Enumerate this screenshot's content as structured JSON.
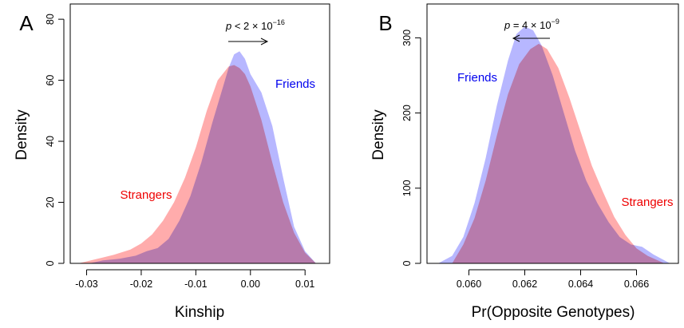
{
  "colors": {
    "friends_fill": "#9999ff",
    "strangers_fill": "#ff8080",
    "friends_label": "#0000ee",
    "strangers_label": "#ee0000"
  },
  "chart_data": [
    {
      "type": "area",
      "panel": "A",
      "xlabel": "Kinship",
      "ylabel": "Density",
      "xlim": [
        -0.033,
        0.0145
      ],
      "ylim": [
        0,
        85
      ],
      "xticks": [
        "-0.03",
        "-0.02",
        "-0.01",
        "0.00",
        "0.01"
      ],
      "yticks": [
        "0",
        "20",
        "40",
        "60",
        "80"
      ],
      "annotation": {
        "p": "p",
        "rest": " < 2 × 10",
        "exp": "−16",
        "arrow_direction": "right"
      },
      "series": [
        {
          "name": "Strangers",
          "x": [
            -0.0315,
            -0.028,
            -0.025,
            -0.022,
            -0.02,
            -0.018,
            -0.016,
            -0.014,
            -0.012,
            -0.01,
            -0.008,
            -0.006,
            -0.004,
            -0.003,
            -0.002,
            -0.001,
            0.0,
            0.002,
            0.004,
            0.006,
            0.008,
            0.01,
            0.012
          ],
          "y": [
            0,
            1.5,
            2.8,
            4.5,
            6.5,
            9.5,
            14,
            20,
            28,
            38,
            50,
            60,
            64.5,
            65,
            64,
            62,
            58,
            47,
            33,
            20,
            10,
            3.5,
            0
          ]
        },
        {
          "name": "Friends",
          "x": [
            -0.0295,
            -0.027,
            -0.024,
            -0.021,
            -0.019,
            -0.017,
            -0.015,
            -0.013,
            -0.011,
            -0.009,
            -0.007,
            -0.005,
            -0.004,
            -0.003,
            -0.002,
            -0.001,
            0.0,
            0.002,
            0.004,
            0.006,
            0.008,
            0.01,
            0.012
          ],
          "y": [
            0,
            1.0,
            1.5,
            2.5,
            4.0,
            5.0,
            8,
            14,
            22,
            33,
            46,
            58,
            64,
            68.5,
            69.5,
            67,
            62,
            56,
            45,
            28,
            12,
            4,
            0
          ]
        }
      ]
    },
    {
      "type": "area",
      "panel": "B",
      "xlabel": "Pr(Opposite Genotypes)",
      "ylabel": "Density",
      "xlim": [
        0.0585,
        0.0675
      ],
      "ylim": [
        0,
        345
      ],
      "xticks": [
        "0.060",
        "0.062",
        "0.064",
        "0.066"
      ],
      "yticks": [
        "0",
        "100",
        "200",
        "300"
      ],
      "annotation": {
        "p": "p",
        "rest": " = 4 × 10",
        "exp": "−9",
        "arrow_direction": "left"
      },
      "series": [
        {
          "name": "Friends",
          "x": [
            0.0589,
            0.0594,
            0.0598,
            0.0602,
            0.0606,
            0.061,
            0.0614,
            0.0617,
            0.062,
            0.0623,
            0.0626,
            0.063,
            0.0634,
            0.0638,
            0.0642,
            0.0646,
            0.065,
            0.0654,
            0.0658,
            0.0662,
            0.0666,
            0.0672
          ],
          "y": [
            0,
            10,
            35,
            80,
            140,
            210,
            270,
            305,
            315,
            310,
            290,
            250,
            200,
            150,
            110,
            80,
            55,
            35,
            25,
            22,
            12,
            0
          ]
        },
        {
          "name": "Strangers",
          "x": [
            0.0594,
            0.0598,
            0.0602,
            0.0606,
            0.061,
            0.0614,
            0.0618,
            0.0622,
            0.0625,
            0.0628,
            0.0632,
            0.0636,
            0.064,
            0.0644,
            0.0648,
            0.0652,
            0.0656,
            0.066,
            0.0664,
            0.067
          ],
          "y": [
            0,
            25,
            60,
            110,
            170,
            225,
            265,
            285,
            292,
            285,
            260,
            220,
            175,
            130,
            95,
            62,
            38,
            20,
            10,
            0
          ]
        }
      ]
    }
  ]
}
